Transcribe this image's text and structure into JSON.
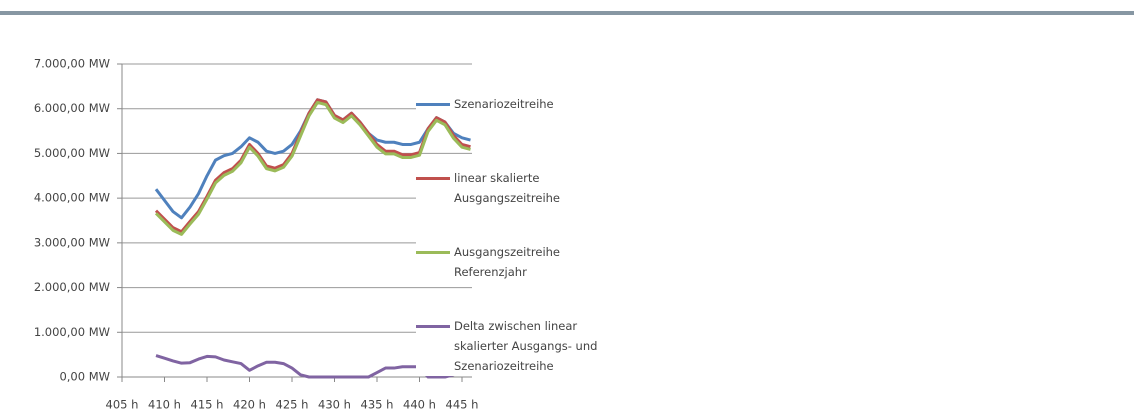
{
  "chart_data": {
    "type": "line",
    "x": [
      409,
      410,
      411,
      412,
      413,
      414,
      415,
      416,
      417,
      418,
      419,
      420,
      421,
      422,
      423,
      424,
      425,
      426,
      427,
      428,
      429,
      430,
      431,
      432,
      433,
      434,
      435,
      436,
      437,
      438,
      439,
      440,
      441,
      442,
      443,
      444,
      445,
      446
    ],
    "series": [
      {
        "name": "Szenariozeitreihe",
        "color": "#4f81bd",
        "values": [
          4200,
          3950,
          3700,
          3560,
          3800,
          4100,
          4500,
          4850,
          4950,
          5000,
          5150,
          5350,
          5250,
          5050,
          5000,
          5050,
          5200,
          5500,
          5900,
          6200,
          6150,
          5850,
          5750,
          5900,
          5700,
          5450,
          5300,
          5250,
          5250,
          5200,
          5200,
          5250,
          5550,
          5800,
          5700,
          5450,
          5350,
          5300
        ]
      },
      {
        "name": "linear skalierte Ausgangszeitreihe",
        "color": "#c0504d",
        "values": [
          3720,
          3530,
          3340,
          3250,
          3480,
          3700,
          4040,
          4400,
          4570,
          4660,
          4850,
          5200,
          5000,
          4720,
          4670,
          4750,
          5000,
          5450,
          5900,
          6200,
          6150,
          5850,
          5750,
          5900,
          5700,
          5450,
          5200,
          5050,
          5050,
          4970,
          4970,
          5020,
          5550,
          5800,
          5700,
          5400,
          5200,
          5150
        ]
      },
      {
        "name": "Ausgangszeitreihe Referenzjahr",
        "color": "#9bbb59",
        "values": [
          3660,
          3470,
          3280,
          3190,
          3420,
          3640,
          3980,
          4340,
          4510,
          4600,
          4790,
          5140,
          4940,
          4660,
          4610,
          4690,
          4940,
          5390,
          5840,
          6140,
          6090,
          5790,
          5690,
          5840,
          5640,
          5390,
          5140,
          4990,
          4990,
          4910,
          4910,
          4960,
          5490,
          5740,
          5640,
          5340,
          5140,
          5090
        ]
      },
      {
        "name": "Delta zwischen linear skalierter Ausgangs- und Szenariozeitreihe",
        "color": "#8064a2",
        "values": [
          480,
          420,
          360,
          310,
          320,
          400,
          460,
          450,
          380,
          340,
          300,
          150,
          250,
          330,
          330,
          300,
          200,
          50,
          0,
          0,
          0,
          0,
          0,
          0,
          0,
          0,
          100,
          200,
          200,
          230,
          230,
          230,
          0,
          0,
          0,
          50,
          150,
          150
        ]
      }
    ],
    "xlim": [
      405,
      445
    ],
    "xticks": [
      {
        "value": 405,
        "label": "405 h"
      },
      {
        "value": 410,
        "label": "410 h"
      },
      {
        "value": 415,
        "label": "415 h"
      },
      {
        "value": 420,
        "label": "420 h"
      },
      {
        "value": 425,
        "label": "425 h"
      },
      {
        "value": 430,
        "label": "430 h"
      },
      {
        "value": 435,
        "label": "435 h"
      },
      {
        "value": 440,
        "label": "440 h"
      },
      {
        "value": 445,
        "label": "445 h"
      }
    ],
    "ylim": [
      0,
      7000
    ],
    "yticks": [
      {
        "value": 0,
        "label": "0,00 MW"
      },
      {
        "value": 1000,
        "label": "1.000,00 MW"
      },
      {
        "value": 2000,
        "label": "2.000,00 MW"
      },
      {
        "value": 3000,
        "label": "3.000,00 MW"
      },
      {
        "value": 4000,
        "label": "4.000,00 MW"
      },
      {
        "value": 5000,
        "label": "5.000,00 MW"
      },
      {
        "value": 6000,
        "label": "6.000,00 MW"
      },
      {
        "value": 7000,
        "label": "7.000,00 MW"
      }
    ],
    "grid": true,
    "legend": "right"
  }
}
